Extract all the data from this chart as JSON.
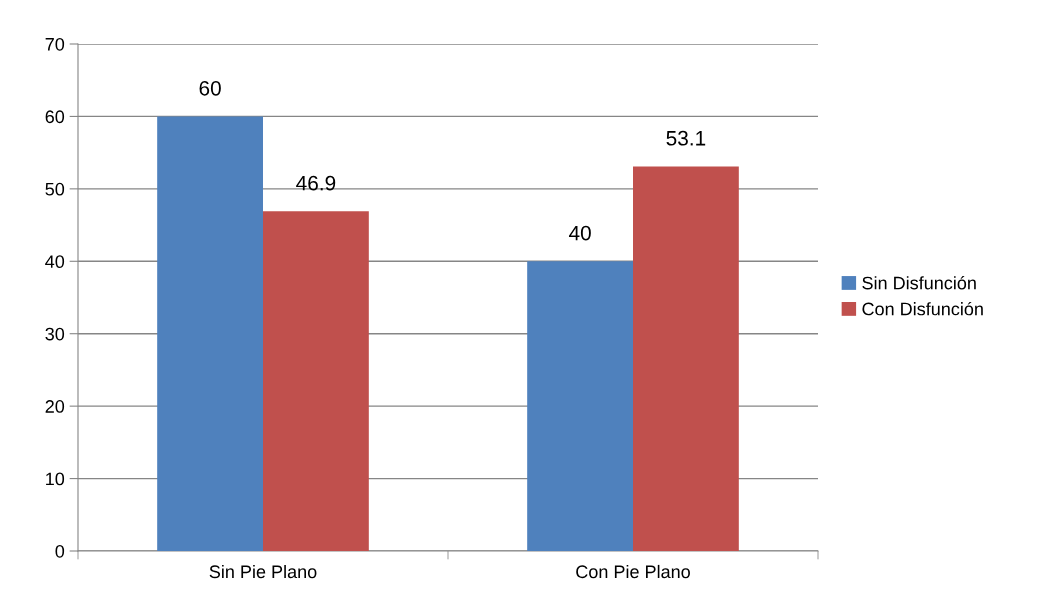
{
  "chart_data": {
    "type": "bar",
    "categories": [
      "Sin Pie Plano",
      "Con Pie Plano"
    ],
    "series": [
      {
        "name": "Sin Disfunción",
        "color": "#4f81bd",
        "values": [
          60,
          40
        ]
      },
      {
        "name": "Con Disfunción",
        "color": "#c0504d",
        "values": [
          46.9,
          53.1
        ]
      }
    ],
    "ylim": [
      0,
      70
    ],
    "yticks": [
      0,
      10,
      20,
      30,
      40,
      50,
      60,
      70
    ],
    "grid": "y",
    "legend": "right",
    "data_labels": true
  }
}
